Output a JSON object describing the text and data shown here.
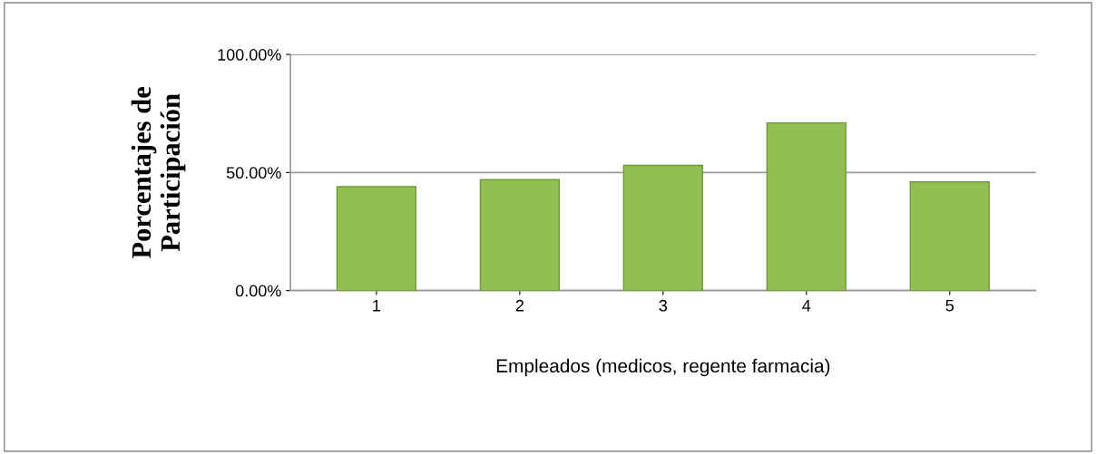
{
  "chart_data": {
    "type": "bar",
    "categories": [
      "1",
      "2",
      "3",
      "4",
      "5"
    ],
    "values": [
      0.44,
      0.47,
      0.53,
      0.71,
      0.46
    ],
    "color": "#92c050",
    "ylim": [
      0,
      1
    ],
    "yticks": [
      {
        "value": 0,
        "label": "0.00%"
      },
      {
        "value": 0.5,
        "label": "50.00%"
      },
      {
        "value": 1,
        "label": "100.00%"
      }
    ],
    "grid": "y",
    "xlabel": "Empleados (medicos, regente farmacia)",
    "ylabel": "Porcentajes de\nParticipación"
  }
}
